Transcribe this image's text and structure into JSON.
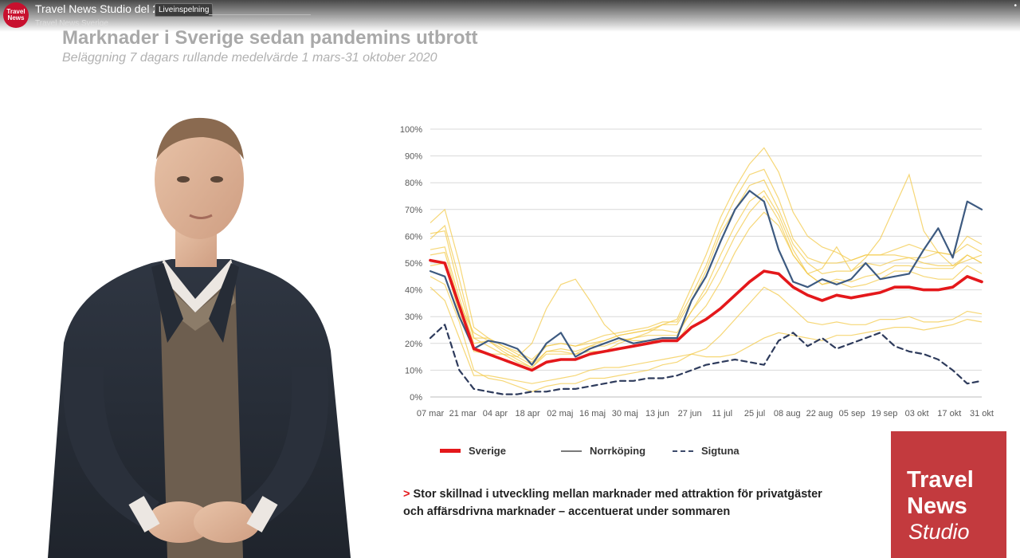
{
  "player": {
    "channel_logo_line1": "Travel",
    "channel_logo_line2": "News",
    "video_title": "Travel News Studio del 2",
    "live_badge": "Liveinspelning",
    "channel_name": "Travel News Sverige",
    "more_icon": "more-icon"
  },
  "slide": {
    "title": "Marknader i Sverige sedan pandemins utbrott",
    "subtitle": "Beläggning 7 dagars rullande medelvärde 1 mars-31 oktober 2020",
    "takeaway_marker": ">",
    "takeaway_line1": "Stor skillnad i utveckling mellan marknader med attraktion för privatgäster",
    "takeaway_line2": "och affärsdrivna marknader – accentuerat under sommaren"
  },
  "brand": {
    "line1": "Travel",
    "line2": "News",
    "line3": "Studio"
  },
  "colors": {
    "sverige": "#e4181b",
    "norrkoping": "#3d5a80",
    "sigtuna": "#2e3b5c",
    "other_markets": "#f3c94a",
    "brand": "#c33a3e"
  },
  "chart_data": {
    "type": "line",
    "ylabel": "",
    "xlabel": "",
    "ylim": [
      0,
      100
    ],
    "y_ticks": [
      "0%",
      "10%",
      "20%",
      "30%",
      "40%",
      "50%",
      "60%",
      "70%",
      "80%",
      "90%",
      "100%"
    ],
    "x_ticks": [
      "07 mar",
      "21 mar",
      "04 apr",
      "18 apr",
      "02 maj",
      "16 maj",
      "30 maj",
      "13 jun",
      "27 jun",
      "11 jul",
      "25 jul",
      "08 aug",
      "22 aug",
      "05 sep",
      "19 sep",
      "03 okt",
      "17 okt",
      "31 okt"
    ],
    "grid": true,
    "series": [
      {
        "name": "Sverige",
        "values": [
          51,
          50,
          34,
          18,
          16,
          14,
          12,
          10,
          13,
          14,
          14,
          16,
          17,
          18,
          19,
          20,
          21,
          21,
          26,
          29,
          33,
          38,
          43,
          47,
          46,
          41,
          38,
          36,
          38,
          37,
          38,
          39,
          41,
          41,
          40,
          40,
          41,
          45,
          43
        ]
      },
      {
        "name": "Norrköping",
        "values": [
          47,
          45,
          30,
          18,
          21,
          20,
          18,
          12,
          20,
          24,
          15,
          18,
          20,
          22,
          20,
          21,
          22,
          22,
          36,
          45,
          58,
          70,
          77,
          73,
          55,
          43,
          41,
          44,
          42,
          44,
          50,
          44,
          45,
          46,
          55,
          63,
          52,
          73,
          70
        ]
      },
      {
        "name": "Sigtuna",
        "values": [
          22,
          27,
          10,
          3,
          2,
          1,
          1,
          2,
          2,
          3,
          3,
          4,
          5,
          6,
          6,
          7,
          7,
          8,
          10,
          12,
          13,
          14,
          13,
          12,
          21,
          24,
          19,
          22,
          18,
          20,
          22,
          24,
          19,
          17,
          16,
          14,
          10,
          5,
          6
        ]
      }
    ],
    "legend": [
      "Sverige",
      "Norrköping",
      "Sigtuna"
    ],
    "legend_position": "bottom"
  }
}
